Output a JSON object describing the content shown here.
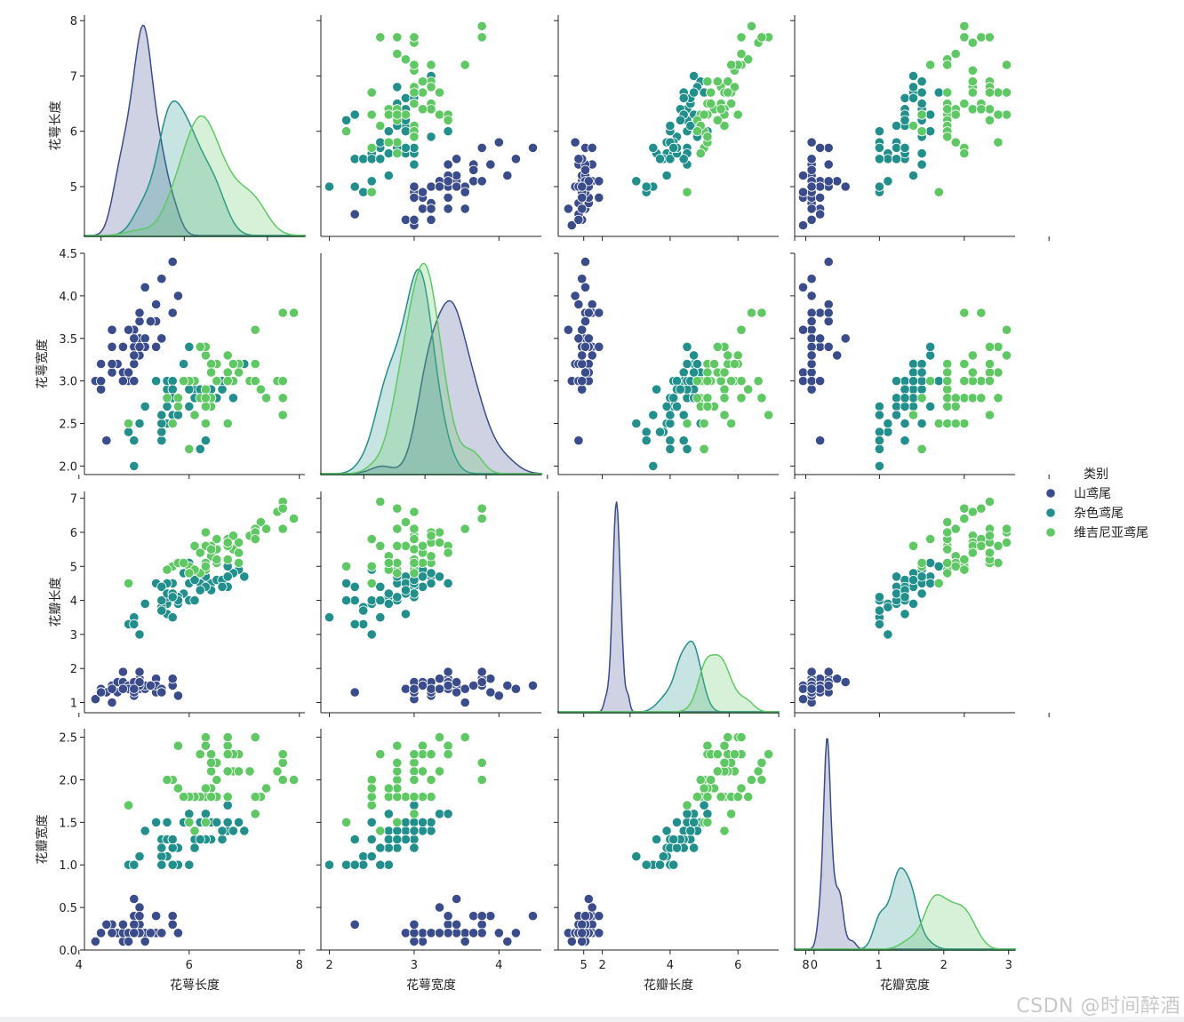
{
  "chart_data": {
    "type": "scatter",
    "kind": "pairplot",
    "variables": [
      "花萼长度",
      "花萼宽度",
      "花瓣长度",
      "花瓣宽度"
    ],
    "hue_title": "类别",
    "classes": [
      {
        "name": "山鸢尾",
        "color": "#3b4c8c"
      },
      {
        "name": "杂色鸢尾",
        "color": "#21908d"
      },
      {
        "name": "维吉尼亚鸢尾",
        "color": "#5ec962"
      }
    ],
    "axis_ranges": {
      "花萼长度": [
        4.1,
        8.1
      ],
      "花萼宽度": [
        1.9,
        4.5
      ],
      "花瓣长度": [
        0.7,
        7.2
      ],
      "花瓣宽度": [
        0.0,
        2.6
      ]
    },
    "x_ticks": [
      [
        4,
        6,
        8
      ],
      [
        2,
        3,
        4,
        5
      ],
      [
        2,
        4,
        6,
        8
      ],
      [
        0,
        1,
        2,
        3
      ]
    ],
    "y_ticks": [
      [
        "5",
        "6",
        "7",
        "8"
      ],
      [
        "2.0",
        "2.5",
        "3.0",
        "3.5",
        "4.0",
        "4.5"
      ],
      [
        "1",
        "2",
        "3",
        "4",
        "5",
        "6",
        "7"
      ],
      [
        "0.0",
        "0.5",
        "1.0",
        "1.5",
        "2.0",
        "2.5"
      ]
    ],
    "kde_x_ranges": [
      [
        3.6,
        8.9
      ],
      [
        1.3,
        4.9
      ],
      [
        -0.9,
        8.0
      ],
      [
        -0.3,
        3.1
      ]
    ],
    "series": [
      {
        "name": "山鸢尾",
        "points": [
          [
            5.1,
            3.5,
            1.4,
            0.2
          ],
          [
            4.9,
            3.0,
            1.4,
            0.2
          ],
          [
            4.7,
            3.2,
            1.3,
            0.2
          ],
          [
            4.6,
            3.1,
            1.5,
            0.2
          ],
          [
            5.0,
            3.6,
            1.4,
            0.2
          ],
          [
            5.4,
            3.9,
            1.7,
            0.4
          ],
          [
            4.6,
            3.4,
            1.4,
            0.3
          ],
          [
            5.0,
            3.4,
            1.5,
            0.2
          ],
          [
            4.4,
            2.9,
            1.4,
            0.2
          ],
          [
            4.9,
            3.1,
            1.5,
            0.1
          ],
          [
            5.4,
            3.7,
            1.5,
            0.2
          ],
          [
            4.8,
            3.4,
            1.6,
            0.2
          ],
          [
            4.8,
            3.0,
            1.4,
            0.1
          ],
          [
            4.3,
            3.0,
            1.1,
            0.1
          ],
          [
            5.8,
            4.0,
            1.2,
            0.2
          ],
          [
            5.7,
            4.4,
            1.5,
            0.4
          ],
          [
            5.4,
            3.9,
            1.3,
            0.4
          ],
          [
            5.1,
            3.5,
            1.4,
            0.3
          ],
          [
            5.7,
            3.8,
            1.7,
            0.3
          ],
          [
            5.1,
            3.8,
            1.5,
            0.3
          ],
          [
            5.4,
            3.4,
            1.7,
            0.2
          ],
          [
            5.1,
            3.7,
            1.5,
            0.4
          ],
          [
            4.6,
            3.6,
            1.0,
            0.2
          ],
          [
            5.1,
            3.3,
            1.7,
            0.5
          ],
          [
            4.8,
            3.4,
            1.9,
            0.2
          ],
          [
            5.0,
            3.0,
            1.6,
            0.2
          ],
          [
            5.0,
            3.4,
            1.6,
            0.4
          ],
          [
            5.2,
            3.5,
            1.5,
            0.2
          ],
          [
            5.2,
            3.4,
            1.4,
            0.2
          ],
          [
            4.7,
            3.2,
            1.6,
            0.2
          ],
          [
            4.8,
            3.1,
            1.6,
            0.2
          ],
          [
            5.4,
            3.4,
            1.5,
            0.4
          ],
          [
            5.2,
            4.1,
            1.5,
            0.1
          ],
          [
            5.5,
            4.2,
            1.4,
            0.2
          ],
          [
            4.9,
            3.1,
            1.5,
            0.2
          ],
          [
            5.0,
            3.2,
            1.2,
            0.2
          ],
          [
            5.5,
            3.5,
            1.3,
            0.2
          ],
          [
            4.9,
            3.6,
            1.4,
            0.1
          ],
          [
            4.4,
            3.0,
            1.3,
            0.2
          ],
          [
            5.1,
            3.4,
            1.5,
            0.2
          ],
          [
            5.0,
            3.5,
            1.3,
            0.3
          ],
          [
            4.5,
            2.3,
            1.3,
            0.3
          ],
          [
            4.4,
            3.2,
            1.3,
            0.2
          ],
          [
            5.0,
            3.5,
            1.6,
            0.6
          ],
          [
            5.1,
            3.8,
            1.9,
            0.4
          ],
          [
            4.8,
            3.0,
            1.4,
            0.3
          ],
          [
            5.1,
            3.8,
            1.6,
            0.2
          ],
          [
            4.6,
            3.2,
            1.4,
            0.2
          ],
          [
            5.3,
            3.7,
            1.5,
            0.2
          ],
          [
            5.0,
            3.3,
            1.4,
            0.2
          ]
        ]
      },
      {
        "name": "杂色鸢尾",
        "points": [
          [
            7.0,
            3.2,
            4.7,
            1.4
          ],
          [
            6.4,
            3.2,
            4.5,
            1.5
          ],
          [
            6.9,
            3.1,
            4.9,
            1.5
          ],
          [
            5.5,
            2.3,
            4.0,
            1.3
          ],
          [
            6.5,
            2.8,
            4.6,
            1.5
          ],
          [
            5.7,
            2.8,
            4.5,
            1.3
          ],
          [
            6.3,
            3.3,
            4.7,
            1.6
          ],
          [
            4.9,
            2.4,
            3.3,
            1.0
          ],
          [
            6.6,
            2.9,
            4.6,
            1.3
          ],
          [
            5.2,
            2.7,
            3.9,
            1.4
          ],
          [
            5.0,
            2.0,
            3.5,
            1.0
          ],
          [
            5.9,
            3.0,
            4.2,
            1.5
          ],
          [
            6.0,
            2.2,
            4.0,
            1.0
          ],
          [
            6.1,
            2.9,
            4.7,
            1.4
          ],
          [
            5.6,
            2.9,
            3.6,
            1.3
          ],
          [
            6.7,
            3.1,
            4.4,
            1.4
          ],
          [
            5.6,
            3.0,
            4.5,
            1.5
          ],
          [
            5.8,
            2.7,
            4.1,
            1.0
          ],
          [
            6.2,
            2.2,
            4.5,
            1.5
          ],
          [
            5.6,
            2.5,
            3.9,
            1.1
          ],
          [
            5.9,
            3.2,
            4.8,
            1.8
          ],
          [
            6.1,
            2.8,
            4.0,
            1.3
          ],
          [
            6.3,
            2.5,
            4.9,
            1.5
          ],
          [
            6.1,
            2.8,
            4.7,
            1.2
          ],
          [
            6.4,
            2.9,
            4.3,
            1.3
          ],
          [
            6.6,
            3.0,
            4.4,
            1.4
          ],
          [
            6.8,
            2.8,
            4.8,
            1.4
          ],
          [
            6.7,
            3.0,
            5.0,
            1.7
          ],
          [
            6.0,
            2.9,
            4.5,
            1.5
          ],
          [
            5.7,
            2.6,
            3.5,
            1.0
          ],
          [
            5.5,
            2.4,
            3.8,
            1.1
          ],
          [
            5.5,
            2.4,
            3.7,
            1.0
          ],
          [
            5.8,
            2.7,
            3.9,
            1.2
          ],
          [
            6.0,
            2.7,
            5.1,
            1.6
          ],
          [
            5.4,
            3.0,
            4.5,
            1.5
          ],
          [
            6.0,
            3.4,
            4.5,
            1.6
          ],
          [
            6.7,
            3.1,
            4.7,
            1.5
          ],
          [
            6.3,
            2.3,
            4.4,
            1.3
          ],
          [
            5.6,
            3.0,
            4.1,
            1.3
          ],
          [
            5.5,
            2.5,
            4.0,
            1.3
          ],
          [
            5.5,
            2.6,
            4.4,
            1.2
          ],
          [
            6.1,
            3.0,
            4.6,
            1.4
          ],
          [
            5.8,
            2.6,
            4.0,
            1.2
          ],
          [
            5.0,
            2.3,
            3.3,
            1.0
          ],
          [
            5.6,
            2.7,
            4.2,
            1.3
          ],
          [
            5.7,
            3.0,
            4.2,
            1.2
          ],
          [
            5.7,
            2.9,
            4.2,
            1.3
          ],
          [
            6.2,
            2.9,
            4.3,
            1.3
          ],
          [
            5.1,
            2.5,
            3.0,
            1.1
          ],
          [
            5.7,
            2.8,
            4.1,
            1.3
          ]
        ]
      },
      {
        "name": "维吉尼亚鸢尾",
        "points": [
          [
            6.3,
            3.3,
            6.0,
            2.5
          ],
          [
            5.8,
            2.7,
            5.1,
            1.9
          ],
          [
            7.1,
            3.0,
            5.9,
            2.1
          ],
          [
            6.3,
            2.9,
            5.6,
            1.8
          ],
          [
            6.5,
            3.0,
            5.8,
            2.2
          ],
          [
            7.6,
            3.0,
            6.6,
            2.1
          ],
          [
            4.9,
            2.5,
            4.5,
            1.7
          ],
          [
            7.3,
            2.9,
            6.3,
            1.8
          ],
          [
            6.7,
            2.5,
            5.8,
            1.8
          ],
          [
            7.2,
            3.6,
            6.1,
            2.5
          ],
          [
            6.5,
            3.2,
            5.1,
            2.0
          ],
          [
            6.4,
            2.7,
            5.3,
            1.9
          ],
          [
            6.8,
            3.0,
            5.5,
            2.1
          ],
          [
            5.7,
            2.5,
            5.0,
            2.0
          ],
          [
            5.8,
            2.8,
            5.1,
            2.4
          ],
          [
            6.4,
            3.2,
            5.3,
            2.3
          ],
          [
            6.5,
            3.0,
            5.5,
            1.8
          ],
          [
            7.7,
            3.8,
            6.7,
            2.2
          ],
          [
            7.7,
            2.6,
            6.9,
            2.3
          ],
          [
            6.0,
            2.2,
            5.0,
            1.5
          ],
          [
            6.9,
            3.2,
            5.7,
            2.3
          ],
          [
            5.6,
            2.8,
            4.9,
            2.0
          ],
          [
            7.7,
            2.8,
            6.7,
            2.0
          ],
          [
            6.3,
            2.7,
            4.9,
            1.8
          ],
          [
            6.7,
            3.3,
            5.7,
            2.1
          ],
          [
            7.2,
            3.2,
            6.0,
            1.8
          ],
          [
            6.2,
            2.8,
            4.8,
            1.8
          ],
          [
            6.1,
            3.0,
            4.9,
            1.8
          ],
          [
            6.4,
            2.8,
            5.6,
            2.1
          ],
          [
            7.2,
            3.0,
            5.8,
            1.6
          ],
          [
            7.4,
            2.8,
            6.1,
            1.9
          ],
          [
            7.9,
            3.8,
            6.4,
            2.0
          ],
          [
            6.4,
            2.8,
            5.6,
            2.2
          ],
          [
            6.3,
            2.8,
            5.1,
            1.5
          ],
          [
            6.1,
            2.6,
            5.6,
            1.4
          ],
          [
            7.7,
            3.0,
            6.1,
            2.3
          ],
          [
            6.3,
            3.4,
            5.6,
            2.4
          ],
          [
            6.4,
            3.1,
            5.5,
            1.8
          ],
          [
            6.0,
            3.0,
            4.8,
            1.8
          ],
          [
            6.9,
            3.1,
            5.4,
            2.1
          ],
          [
            6.7,
            3.1,
            5.6,
            2.4
          ],
          [
            6.9,
            3.1,
            5.1,
            2.3
          ],
          [
            5.8,
            2.7,
            5.1,
            1.9
          ],
          [
            6.8,
            3.2,
            5.9,
            2.3
          ],
          [
            6.7,
            3.3,
            5.7,
            2.5
          ],
          [
            6.7,
            3.0,
            5.2,
            2.3
          ],
          [
            6.3,
            2.5,
            5.0,
            1.9
          ],
          [
            6.5,
            3.0,
            5.2,
            2.0
          ],
          [
            6.2,
            3.4,
            5.4,
            2.3
          ],
          [
            5.9,
            3.0,
            5.1,
            1.8
          ]
        ]
      }
    ]
  },
  "watermark": "CSDN @时间醉酒"
}
